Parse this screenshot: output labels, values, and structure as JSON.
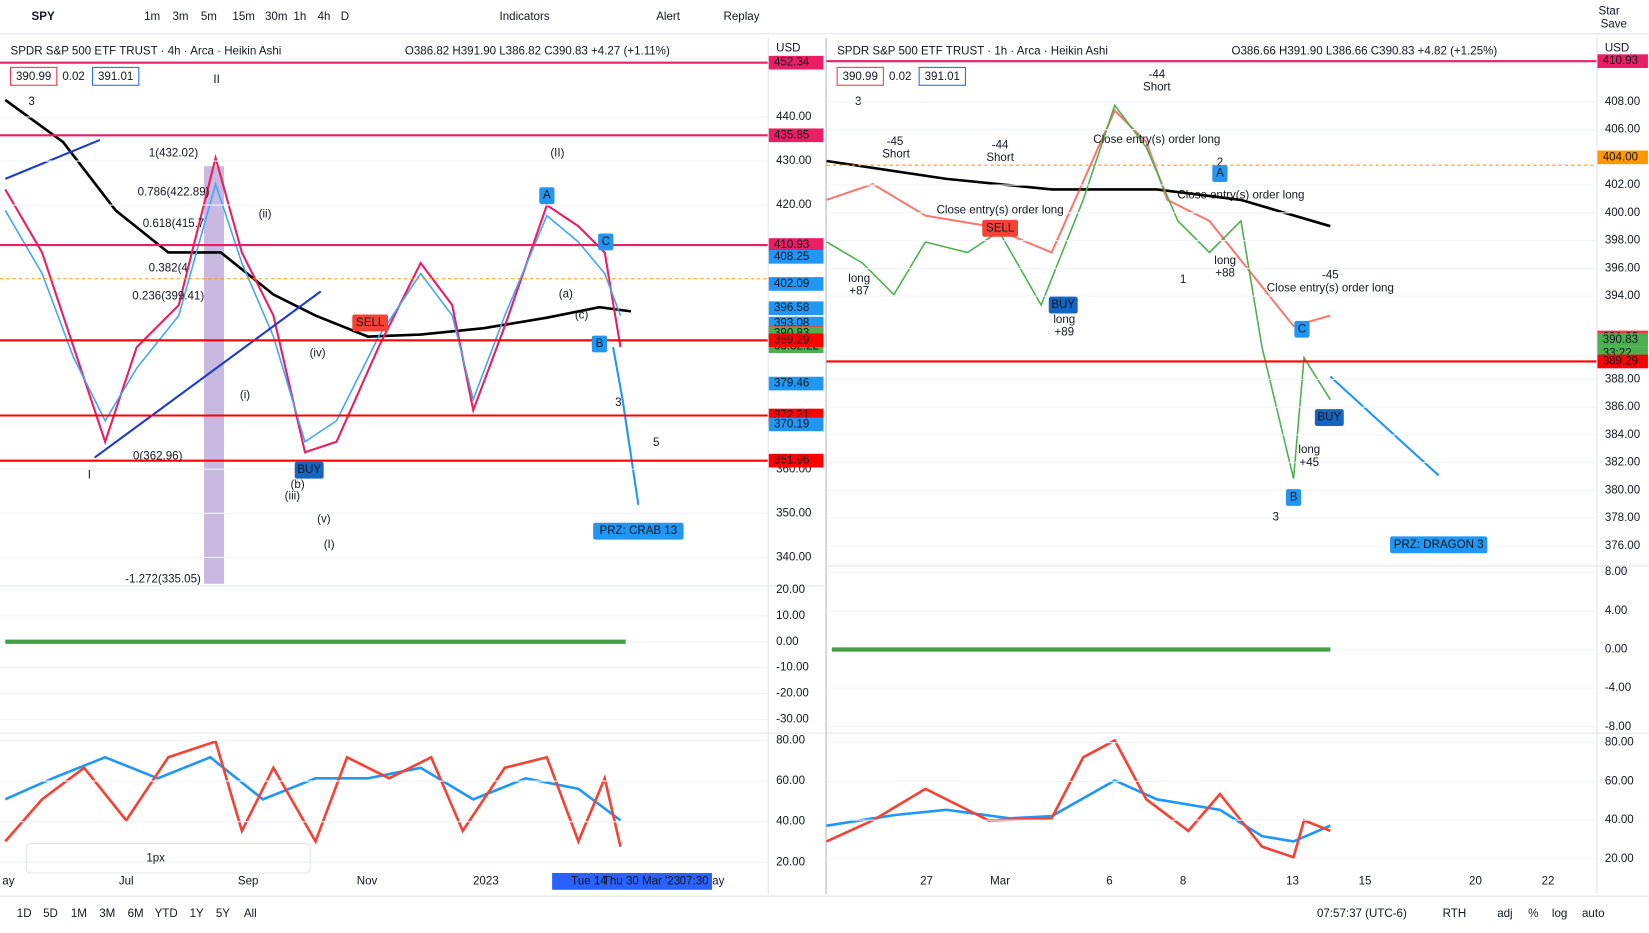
{
  "toolbar": {
    "symbol": "SPY",
    "intervals": [
      "1m",
      "3m",
      "5m",
      "15m",
      "30m",
      "1h",
      "4h",
      "D"
    ],
    "active_interval": 6,
    "buttons": [
      "Indicators",
      "Alert",
      "Replay"
    ],
    "right_label": "Star",
    "right_sublabel": "Save"
  },
  "panes": [
    {
      "title": "SPDR S&P 500 ETF TRUST · 4h · Arca · Heikin Ashi",
      "ohlc": "O386.82 H391.90 L386.82 C390.83 +4.27 (+1.11%)",
      "boxes": [
        "390.99",
        "0.02",
        "391.01"
      ],
      "legend_count": "3",
      "currency": "USD",
      "price_axis": {
        "ylim": [
          334,
          457
        ],
        "ticks": [
          {
            "value": 440,
            "label": "440.00"
          },
          {
            "value": 430,
            "label": "430.00"
          },
          {
            "value": 420,
            "label": "420.00"
          },
          {
            "value": 360,
            "label": "360.00"
          },
          {
            "value": 350,
            "label": "350.00"
          },
          {
            "value": 340,
            "label": "340.00"
          }
        ]
      },
      "price_labels": [
        {
          "value": 452.34,
          "label": "452.34",
          "color": "#e91e63",
          "line_color": "#e91e63"
        },
        {
          "value": 435.85,
          "label": "435.85",
          "color": "#e91e63",
          "line_color": "#e91e63"
        },
        {
          "value": 410.93,
          "label": "410.93",
          "color": "#e91e63",
          "line_color": "#e91e63"
        },
        {
          "value": 408.25,
          "label": "408.25",
          "color": "#2196f3"
        },
        {
          "value": 402.09,
          "label": "402.09",
          "color": "#2196f3"
        },
        {
          "value": 396.58,
          "label": "396.58",
          "color": "#2196f3"
        },
        {
          "value": 393.08,
          "label": "393.08",
          "color": "#2196f3"
        },
        {
          "value": 391.02,
          "label": "391.02",
          "color": "#f23645"
        },
        {
          "value": 390.83,
          "label": "390.83",
          "color": "#4caf50"
        },
        {
          "value": 389.29,
          "label": "389.29",
          "color": "#f00",
          "line_color": "#f00"
        },
        {
          "value": 379.46,
          "label": "379.46",
          "color": "#2196f3"
        },
        {
          "value": 372.21,
          "label": "372.21",
          "color": "#f00",
          "line_color": "#f00"
        },
        {
          "value": 370.19,
          "label": "370.19",
          "color": "#2196f3"
        },
        {
          "value": 361.96,
          "label": "361.96",
          "color": "#f00",
          "line_color": "#f00"
        }
      ],
      "countdown": "03:32:22",
      "osc_axis": {
        "ylim": [
          -35.3,
          21.6
        ],
        "ticks": [
          {
            "value": 20,
            "label": "20.00"
          },
          {
            "value": 10,
            "label": "10.00"
          },
          {
            "value": 0,
            "label": "0.00"
          },
          {
            "value": -10,
            "label": "-10.00"
          },
          {
            "value": -20,
            "label": "-20.00"
          },
          {
            "value": -30,
            "label": "-30.00"
          }
        ]
      },
      "rsi_axis": {
        "ylim": [
          15.8,
          83.6
        ],
        "ticks": [
          {
            "value": 80,
            "label": "80.00"
          },
          {
            "value": 60,
            "label": "60.00"
          },
          {
            "value": 40,
            "label": "40.00"
          },
          {
            "value": 20,
            "label": "20.00"
          }
        ]
      },
      "time_labels": [
        "ay",
        "Jul",
        "Sep",
        "Nov",
        "2023",
        "Tue 14",
        "Thu 30 Mar '23",
        "07:30",
        "ay"
      ],
      "annotations": [
        "I",
        "II",
        "(II)",
        "(I)",
        "1(432.02)",
        "0.786(422.89)",
        "0.618(415.7",
        "0.382(4",
        "0.236(399.41)",
        "0(362.96)",
        "-1.272(335.05)",
        "PRZ: CRAB 13",
        "A",
        "B",
        "C",
        "3",
        "5",
        "(iii)",
        "(iv)",
        "(v)",
        "(ii)",
        "(i)",
        "(b)",
        "(a)",
        "(c)",
        "SELL",
        "BUY"
      ]
    },
    {
      "title": "SPDR S&P 500 ETF TRUST · 1h · Arca · Heikin Ashi",
      "ohlc": "O386.66 H391.90 L386.66 C390.83 +4.82 (+1.25%)",
      "boxes": [
        "390.99",
        "0.02",
        "391.01"
      ],
      "legend_count": "3",
      "currency": "USD",
      "price_axis": {
        "ylim": [
          373.27,
          412.3
        ],
        "ticks": [
          {
            "value": 408,
            "label": "408.00"
          },
          {
            "value": 406,
            "label": "406.00"
          },
          {
            "value": 402,
            "label": "402.00"
          },
          {
            "value": 400,
            "label": "400.00"
          },
          {
            "value": 398,
            "label": "398.00"
          },
          {
            "value": 396,
            "label": "396.00"
          },
          {
            "value": 394,
            "label": "394.00"
          },
          {
            "value": 388,
            "label": "388.00"
          },
          {
            "value": 386,
            "label": "386.00"
          },
          {
            "value": 384,
            "label": "384.00"
          },
          {
            "value": 382,
            "label": "382.00"
          },
          {
            "value": 380,
            "label": "380.00"
          },
          {
            "value": 378,
            "label": "378.00"
          },
          {
            "value": 376,
            "label": "376.00"
          }
        ]
      },
      "price_labels": [
        {
          "value": 410.93,
          "label": "410.93",
          "color": "#e91e63",
          "line_color": "#e91e63"
        },
        {
          "value": 404,
          "label": "404.00",
          "color": "#ff9800"
        },
        {
          "value": 391.02,
          "label": "391.02",
          "color": "#f23645"
        },
        {
          "value": 390.83,
          "label": "390.83",
          "color": "#4caf50"
        },
        {
          "value": 389.29,
          "label": "389.29",
          "color": "#f00",
          "line_color": "#f00"
        }
      ],
      "countdown": "33:22",
      "osc_axis": {
        "ylim": [
          -8.65,
          8.65
        ],
        "ticks": [
          {
            "value": 8,
            "label": "8.00"
          },
          {
            "value": 4,
            "label": "4.00"
          },
          {
            "value": 0,
            "label": "0.00"
          },
          {
            "value": -4,
            "label": "-4.00"
          },
          {
            "value": -8,
            "label": "-8.00"
          }
        ]
      },
      "rsi_axis": {
        "ylim": [
          13.8,
          84.9
        ],
        "ticks": [
          {
            "value": 80,
            "label": "80.00"
          },
          {
            "value": 60,
            "label": "60.00"
          },
          {
            "value": 40,
            "label": "40.00"
          },
          {
            "value": 20,
            "label": "20.00"
          }
        ]
      },
      "time_labels": [
        "27",
        "Mar",
        "6",
        "8",
        "13",
        "15",
        "20",
        "22"
      ],
      "annotations": [
        "-44",
        "Short",
        "-45",
        "Short",
        "-44",
        "Short",
        "Close entry(s) order long",
        "Close entry(s) order long",
        "Close entry(s) order long",
        "Close entry(s) order long",
        "long",
        "+87",
        "long",
        "+89",
        "long",
        "+88",
        "long",
        "+45",
        "1",
        "2",
        "3",
        "A",
        "B",
        "C",
        "BUY",
        "BUY",
        "SELL",
        "PRZ: DRAGON 3",
        "-45"
      ]
    }
  ],
  "bottom_left": [
    "1D",
    "5D",
    "1M",
    "3M",
    "6M",
    "YTD",
    "1Y",
    "5Y",
    "All"
  ],
  "bottom_right": [
    "07:57:37 (UTC-6)",
    "RTH",
    "adj",
    "%",
    "log",
    "auto"
  ],
  "draw_toolbar": "1px"
}
